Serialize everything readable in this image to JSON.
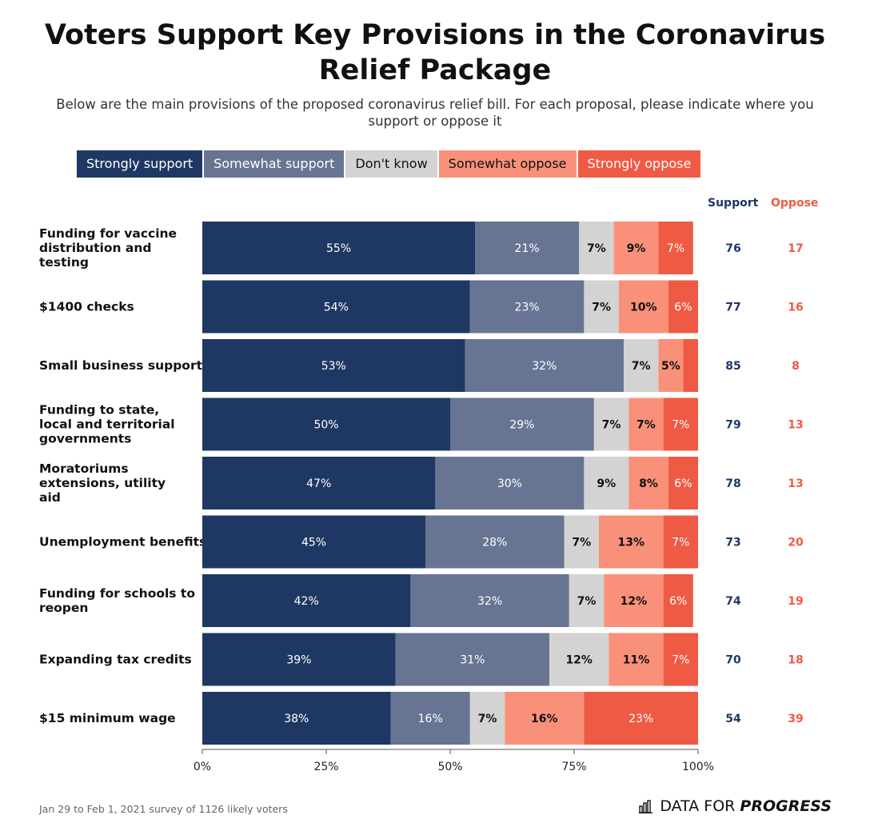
{
  "title": "Voters Support Key Provisions in the Coronavirus Relief Package",
  "subtitle": "Below are the main provisions of the proposed coronavirus relief bill. For each proposal, please indicate where you support or oppose it",
  "legend": [
    {
      "label": "Strongly support",
      "color": "#1f3863"
    },
    {
      "label": "Somewhat support",
      "color": "#677593"
    },
    {
      "label": "Don't know",
      "color": "#d3d3d3"
    },
    {
      "label": "Somewhat oppose",
      "color": "#f9917a"
    },
    {
      "label": "Strongly oppose",
      "color": "#ef5a44"
    }
  ],
  "columns": {
    "support": "Support",
    "oppose": "Oppose",
    "support_color": "#1f3863",
    "oppose_color": "#ef5a44"
  },
  "footer": "Jan 29 to Feb 1, 2021 survey of 1126 likely voters",
  "logo": {
    "icon": "bar-chart-logo-icon",
    "prefix": "DATA FOR",
    "word": "PROGRESS"
  },
  "chart_data": {
    "type": "bar",
    "orientation": "horizontal",
    "stacked": true,
    "xlim": [
      0,
      100
    ],
    "x_ticks": [
      "0%",
      "25%",
      "50%",
      "75%",
      "100%"
    ],
    "categories": [
      "Funding for vaccine distribution and testing",
      "$1400 checks",
      "Small business support",
      "Funding to state, local and territorial governments",
      "Moratoriums extensions, utility aid",
      "Unemployment benefits",
      "Funding for schools to reopen",
      "Expanding tax credits",
      "$15 minimum wage"
    ],
    "series": [
      {
        "name": "Strongly support",
        "values": [
          55,
          54,
          53,
          50,
          47,
          45,
          42,
          39,
          38
        ]
      },
      {
        "name": "Somewhat support",
        "values": [
          21,
          23,
          32,
          29,
          30,
          28,
          32,
          31,
          16
        ]
      },
      {
        "name": "Don't know",
        "values": [
          7,
          7,
          7,
          7,
          9,
          7,
          7,
          12,
          7
        ]
      },
      {
        "name": "Somewhat oppose",
        "values": [
          9,
          10,
          5,
          7,
          8,
          13,
          12,
          11,
          16
        ]
      },
      {
        "name": "Strongly oppose",
        "values": [
          7,
          6,
          3,
          7,
          6,
          7,
          6,
          7,
          23
        ]
      }
    ],
    "value_labels": [
      [
        "55%",
        "21%",
        "7%",
        "9%",
        "7%"
      ],
      [
        "54%",
        "23%",
        "7%",
        "10%",
        "6%"
      ],
      [
        "53%",
        "32%",
        "7%",
        "5%",
        ""
      ],
      [
        "50%",
        "29%",
        "7%",
        "7%",
        "7%"
      ],
      [
        "47%",
        "30%",
        "9%",
        "8%",
        "6%"
      ],
      [
        "45%",
        "28%",
        "7%",
        "13%",
        "7%"
      ],
      [
        "42%",
        "32%",
        "7%",
        "12%",
        "6%"
      ],
      [
        "39%",
        "31%",
        "12%",
        "11%",
        "7%"
      ],
      [
        "38%",
        "16%",
        "7%",
        "16%",
        "23%"
      ]
    ],
    "support_totals": [
      76,
      77,
      85,
      79,
      78,
      73,
      74,
      70,
      54
    ],
    "oppose_totals": [
      17,
      16,
      8,
      13,
      13,
      20,
      19,
      18,
      39
    ]
  }
}
